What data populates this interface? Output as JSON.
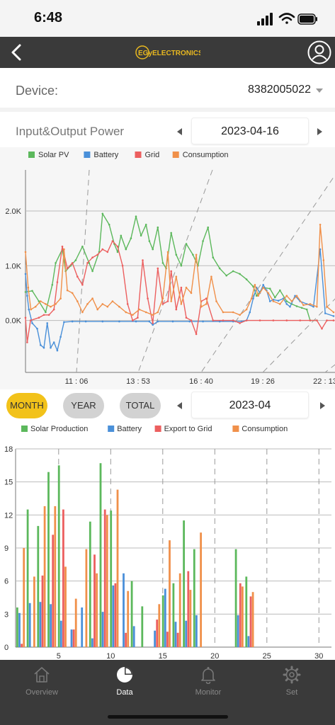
{
  "status_bar": {
    "time": "6:48"
  },
  "header": {
    "logo_text": "EGyELECTRONICS"
  },
  "device": {
    "label": "Device:",
    "value": "8382005022"
  },
  "power": {
    "title": "Input&Output Power",
    "date": "2023-04-16"
  },
  "period": {
    "tabs": [
      "MONTH",
      "YEAR",
      "TOTAL"
    ],
    "selected": "MONTH",
    "date": "2023-04"
  },
  "nav": {
    "items": [
      "Overview",
      "Data",
      "Monitor",
      "Set"
    ],
    "active": "Data"
  },
  "colors": {
    "solar": "#5cb85c",
    "battery": "#4a90d9",
    "grid": "#ec5f5f",
    "consumption": "#f0904a",
    "accent": "#f2c21a",
    "header": "#3a3a3a"
  },
  "chart_data": [
    {
      "type": "line",
      "title": "",
      "legend_position": "top-left",
      "x_ticks": [
        "11 : 06",
        "13 : 53",
        "16 : 40",
        "19 : 26",
        "22 : 13"
      ],
      "y_ticks": [
        "0.0K",
        "1.0K",
        "2.0K"
      ],
      "y_tick_values": [
        0,
        1000,
        2000
      ],
      "ylim": [
        -950,
        2750
      ],
      "x_minutes": [
        420,
        1340
      ],
      "series": [
        {
          "name": "Solar PV",
          "color": "#5cb85c",
          "points": [
            [
              420,
              520
            ],
            [
              440,
              540
            ],
            [
              460,
              350
            ],
            [
              480,
              150
            ],
            [
              500,
              650
            ],
            [
              510,
              1050
            ],
            [
              530,
              1300
            ],
            [
              540,
              900
            ],
            [
              555,
              1000
            ],
            [
              570,
              1100
            ],
            [
              590,
              1350
            ],
            [
              610,
              1050
            ],
            [
              620,
              900
            ],
            [
              640,
              1250
            ],
            [
              650,
              1950
            ],
            [
              670,
              1750
            ],
            [
              685,
              1400
            ],
            [
              695,
              1250
            ],
            [
              705,
              1550
            ],
            [
              720,
              1300
            ],
            [
              735,
              1500
            ],
            [
              750,
              1900
            ],
            [
              765,
              1550
            ],
            [
              780,
              1750
            ],
            [
              790,
              1450
            ],
            [
              800,
              1300
            ],
            [
              815,
              1700
            ],
            [
              830,
              1050
            ],
            [
              840,
              950
            ],
            [
              855,
              1600
            ],
            [
              870,
              1200
            ],
            [
              885,
              1000
            ],
            [
              900,
              1400
            ],
            [
              920,
              1200
            ],
            [
              935,
              1000
            ],
            [
              950,
              1450
            ],
            [
              965,
              1700
            ],
            [
              980,
              1150
            ],
            [
              1000,
              950
            ],
            [
              1020,
              820
            ],
            [
              1040,
              900
            ],
            [
              1060,
              850
            ],
            [
              1080,
              750
            ],
            [
              1100,
              620
            ],
            [
              1110,
              450
            ],
            [
              1130,
              600
            ],
            [
              1150,
              580
            ],
            [
              1165,
              420
            ],
            [
              1180,
              550
            ],
            [
              1200,
              350
            ],
            [
              1215,
              300
            ],
            [
              1230,
              260
            ],
            [
              1245,
              230
            ],
            [
              1260,
              200
            ],
            [
              1270,
              0
            ],
            [
              1290,
              0
            ]
          ]
        },
        {
          "name": "Battery",
          "color": "#4a90d9",
          "points": [
            [
              420,
              850
            ],
            [
              425,
              450
            ],
            [
              430,
              200
            ],
            [
              440,
              -50
            ],
            [
              455,
              -150
            ],
            [
              465,
              -450
            ],
            [
              475,
              -500
            ],
            [
              485,
              -50
            ],
            [
              495,
              -500
            ],
            [
              505,
              -400
            ],
            [
              515,
              -550
            ],
            [
              525,
              -300
            ],
            [
              535,
              -30
            ],
            [
              560,
              -20
            ],
            [
              600,
              -20
            ],
            [
              650,
              -20
            ],
            [
              700,
              -20
            ],
            [
              750,
              -20
            ],
            [
              790,
              -20
            ],
            [
              800,
              -80
            ],
            [
              815,
              -20
            ],
            [
              860,
              -20
            ],
            [
              910,
              -20
            ],
            [
              950,
              -20
            ],
            [
              1000,
              -20
            ],
            [
              1040,
              -20
            ],
            [
              1065,
              -20
            ],
            [
              1080,
              0
            ],
            [
              1090,
              150
            ],
            [
              1100,
              400
            ],
            [
              1110,
              600
            ],
            [
              1120,
              500
            ],
            [
              1130,
              650
            ],
            [
              1140,
              550
            ],
            [
              1150,
              350
            ],
            [
              1160,
              380
            ],
            [
              1175,
              360
            ],
            [
              1190,
              400
            ],
            [
              1200,
              300
            ],
            [
              1210,
              250
            ],
            [
              1225,
              450
            ],
            [
              1240,
              350
            ],
            [
              1260,
              300
            ],
            [
              1280,
              250
            ],
            [
              1300,
              1300
            ],
            [
              1315,
              130
            ],
            [
              1340,
              80
            ]
          ]
        },
        {
          "name": "Grid",
          "color": "#ec5f5f",
          "points": [
            [
              420,
              50
            ],
            [
              425,
              -400
            ],
            [
              435,
              0
            ],
            [
              460,
              50
            ],
            [
              475,
              100
            ],
            [
              490,
              100
            ],
            [
              505,
              200
            ],
            [
              515,
              700
            ],
            [
              530,
              1350
            ],
            [
              545,
              950
            ],
            [
              560,
              1050
            ],
            [
              575,
              800
            ],
            [
              590,
              650
            ],
            [
              605,
              1050
            ],
            [
              620,
              1150
            ],
            [
              635,
              1200
            ],
            [
              650,
              1300
            ],
            [
              665,
              1250
            ],
            [
              680,
              1450
            ],
            [
              695,
              1350
            ],
            [
              710,
              1000
            ],
            [
              725,
              300
            ],
            [
              740,
              0
            ],
            [
              755,
              50
            ],
            [
              770,
              1100
            ],
            [
              785,
              400
            ],
            [
              800,
              -50
            ],
            [
              815,
              950
            ],
            [
              830,
              300
            ],
            [
              845,
              350
            ],
            [
              855,
              900
            ],
            [
              870,
              200
            ],
            [
              885,
              600
            ],
            [
              900,
              50
            ],
            [
              915,
              0
            ],
            [
              930,
              -250
            ],
            [
              945,
              350
            ],
            [
              960,
              400
            ],
            [
              980,
              0
            ],
            [
              1010,
              0
            ],
            [
              1040,
              0
            ],
            [
              1060,
              -50
            ],
            [
              1080,
              0
            ],
            [
              1120,
              0
            ],
            [
              1160,
              0
            ],
            [
              1200,
              0
            ],
            [
              1240,
              0
            ],
            [
              1270,
              0
            ],
            [
              1290,
              0
            ],
            [
              1305,
              -150
            ],
            [
              1320,
              0
            ],
            [
              1340,
              0
            ]
          ]
        },
        {
          "name": "Consumption",
          "color": "#f0904a",
          "points": [
            [
              420,
              1250
            ],
            [
              428,
              600
            ],
            [
              436,
              200
            ],
            [
              450,
              250
            ],
            [
              465,
              350
            ],
            [
              480,
              300
            ],
            [
              495,
              250
            ],
            [
              510,
              300
            ],
            [
              525,
              400
            ],
            [
              535,
              1300
            ],
            [
              545,
              550
            ],
            [
              560,
              500
            ],
            [
              575,
              350
            ],
            [
              590,
              150
            ],
            [
              605,
              300
            ],
            [
              620,
              400
            ],
            [
              635,
              200
            ],
            [
              650,
              300
            ],
            [
              665,
              250
            ],
            [
              680,
              350
            ],
            [
              700,
              250
            ],
            [
              720,
              150
            ],
            [
              740,
              100
            ],
            [
              760,
              200
            ],
            [
              780,
              150
            ],
            [
              800,
              100
            ],
            [
              815,
              150
            ],
            [
              830,
              400
            ],
            [
              845,
              1250
            ],
            [
              855,
              350
            ],
            [
              870,
              800
            ],
            [
              885,
              300
            ],
            [
              900,
              600
            ],
            [
              915,
              500
            ],
            [
              930,
              1200
            ],
            [
              945,
              250
            ],
            [
              960,
              300
            ],
            [
              975,
              800
            ],
            [
              990,
              350
            ],
            [
              1010,
              150
            ],
            [
              1040,
              150
            ],
            [
              1060,
              100
            ],
            [
              1080,
              200
            ],
            [
              1095,
              400
            ],
            [
              1105,
              650
            ],
            [
              1115,
              450
            ],
            [
              1130,
              600
            ],
            [
              1145,
              500
            ],
            [
              1160,
              350
            ],
            [
              1180,
              300
            ],
            [
              1200,
              450
            ],
            [
              1215,
              350
            ],
            [
              1230,
              450
            ],
            [
              1250,
              280
            ],
            [
              1270,
              300
            ],
            [
              1290,
              250
            ],
            [
              1300,
              1750
            ],
            [
              1310,
              1100
            ],
            [
              1320,
              250
            ],
            [
              1340,
              150
            ]
          ]
        }
      ]
    },
    {
      "type": "bar",
      "title": "",
      "legend_position": "top-left",
      "y_ticks": [
        0,
        3,
        6,
        9,
        12,
        15,
        18
      ],
      "ylim": [
        0,
        18
      ],
      "x_ticks": [
        5,
        10,
        15,
        20,
        25,
        30
      ],
      "days": [
        1,
        2,
        3,
        4,
        5,
        6,
        7,
        8,
        9,
        10,
        11,
        12,
        13,
        14,
        15,
        16,
        17,
        18,
        19,
        20,
        21,
        22,
        23,
        24,
        25,
        26,
        27,
        28,
        29,
        30
      ],
      "series": [
        {
          "name": "Solar Production",
          "color": "#5cb85c",
          "values": [
            3.6,
            12.5,
            11.0,
            15.9,
            16.5,
            0,
            0,
            11.4,
            16.7,
            12.4,
            0,
            6.0,
            3.7,
            0,
            4.7,
            5.8,
            11.5,
            8.9,
            0,
            0,
            0,
            8.9,
            6.4,
            0,
            0,
            0,
            0,
            0,
            0,
            0
          ]
        },
        {
          "name": "Battery",
          "color": "#4a90d9",
          "values": [
            3.1,
            4.0,
            4.1,
            3.9,
            2.4,
            1.6,
            3.6,
            0.8,
            3.2,
            5.6,
            6.7,
            1.9,
            0,
            1.5,
            5.3,
            2.3,
            2.4,
            2.9,
            0,
            0,
            0,
            2.9,
            1.0,
            0,
            0,
            0,
            0,
            0,
            0,
            0
          ]
        },
        {
          "name": "Export to Grid",
          "color": "#ec5f5f",
          "values": [
            0.3,
            0,
            6.5,
            10.2,
            12.5,
            1.6,
            0,
            8.4,
            12.5,
            5.8,
            1.3,
            0,
            0,
            2.5,
            1.4,
            1.3,
            6.9,
            0,
            0,
            0,
            0,
            5.8,
            4.6,
            0,
            0,
            0,
            0,
            0,
            0,
            0
          ]
        },
        {
          "name": "Consumption",
          "color": "#f0904a",
          "values": [
            9.0,
            6.4,
            12.8,
            12.8,
            7.3,
            4.4,
            8.9,
            6.7,
            12.0,
            14.3,
            5.1,
            0,
            0,
            3.9,
            9.7,
            6.7,
            5.2,
            10.4,
            0,
            0,
            0,
            5.5,
            5.0,
            0,
            0,
            0,
            0,
            0,
            0,
            0
          ]
        }
      ]
    }
  ]
}
